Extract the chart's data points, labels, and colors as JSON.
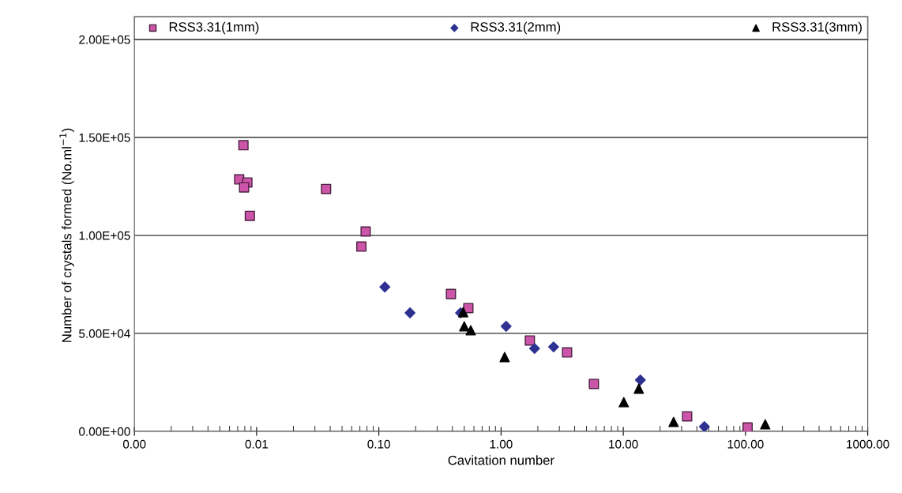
{
  "chart_data": {
    "type": "scatter",
    "xlabel": "Cavitation number",
    "ylabel": "Number of crystals formed (No.ml$^{−1}$)",
    "log": "x",
    "grid": "y",
    "legend": "top",
    "xlim": [
      0.001,
      1000
    ],
    "xticks": [
      {
        "value": 0.001,
        "label": "0.00"
      },
      {
        "value": 0.01,
        "label": "0.01"
      },
      {
        "value": 0.1,
        "label": "0.10"
      },
      {
        "value": 1,
        "label": "1.00"
      },
      {
        "value": 10,
        "label": "10.00"
      },
      {
        "value": 100,
        "label": "100.00"
      },
      {
        "value": 1000,
        "label": "1000.00"
      }
    ],
    "ylim": [
      0,
      200000
    ],
    "yticks": [
      {
        "value": 0,
        "label": "0.00E+00"
      },
      {
        "value": 50000,
        "label": "5.00E+04"
      },
      {
        "value": 100000,
        "label": "1.00E+05"
      },
      {
        "value": 150000,
        "label": "1.50E+05"
      },
      {
        "value": 200000,
        "label": "2.00E+05"
      }
    ],
    "series": [
      {
        "name": "RSS3.31(1mm)",
        "color": "#cc55aa",
        "marker": "square",
        "x": [
          0.0078,
          0.0072,
          0.0084,
          0.0079,
          0.0088,
          0.037,
          0.078,
          0.072,
          0.389,
          0.54,
          1.72,
          3.47,
          5.75,
          33.3,
          104
        ],
        "values": [
          146000,
          128600,
          127000,
          124500,
          110000,
          123700,
          102000,
          94300,
          70100,
          62900,
          46400,
          40300,
          24200,
          7700,
          2000
        ]
      },
      {
        "name": "RSS3.31(2mm)",
        "color": "#2e3192",
        "marker": "diamond",
        "x": [
          0.112,
          0.18,
          0.466,
          1.1,
          1.88,
          2.69,
          13.8,
          46.1
        ],
        "values": [
          73700,
          60500,
          60500,
          53600,
          42300,
          43100,
          26200,
          2400
        ]
      },
      {
        "name": "RSS3.31(3mm)",
        "color": "#000000",
        "marker": "triangle",
        "x": [
          0.49,
          0.5,
          0.565,
          1.07,
          10.1,
          13.4,
          25.8,
          145
        ],
        "values": [
          60800,
          53600,
          51600,
          37900,
          14900,
          21800,
          4800,
          3600
        ]
      }
    ]
  }
}
